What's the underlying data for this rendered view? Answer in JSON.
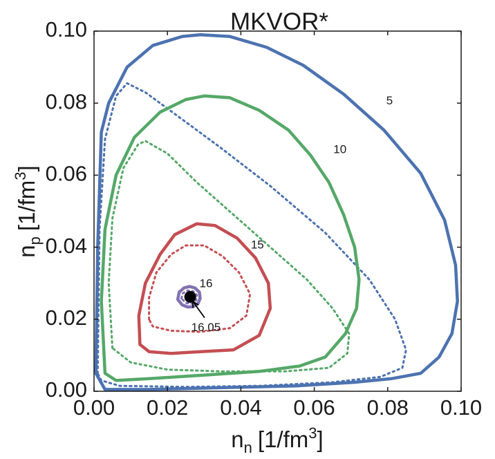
{
  "chart_data": {
    "type": "line",
    "title": "MKVOR*",
    "xlabel": {
      "main": "n",
      "sub": "n",
      "unit": "[1/fm",
      "sup": "3",
      "close": "]"
    },
    "ylabel": {
      "main": "n",
      "sub": "p",
      "unit": "[1/fm",
      "sup": "3",
      "close": "]"
    },
    "xlim": [
      0.0,
      0.1
    ],
    "ylim": [
      0.0,
      0.1
    ],
    "xticks": [
      "0.00",
      "0.02",
      "0.04",
      "0.06",
      "0.08",
      "0.10"
    ],
    "yticks": [
      "0.00",
      "0.02",
      "0.04",
      "0.06",
      "0.08",
      "0.10"
    ],
    "grid": false,
    "colors": {
      "c5": "#4c72b0",
      "c10": "#55a868",
      "c15": "#c44e52",
      "c16": "#8172b2",
      "point": "#000000"
    },
    "series": [
      {
        "name": "5",
        "style": "solid",
        "color": "#4c72b0",
        "label_at": [
          0.0805,
          0.0805
        ],
        "points": [
          [
            0.0005,
            0.005
          ],
          [
            0.001,
            0.04
          ],
          [
            0.002,
            0.072
          ],
          [
            0.004,
            0.08
          ],
          [
            0.009,
            0.09
          ],
          [
            0.016,
            0.096
          ],
          [
            0.024,
            0.0985
          ],
          [
            0.029,
            0.099
          ],
          [
            0.037,
            0.0985
          ],
          [
            0.047,
            0.0955
          ],
          [
            0.057,
            0.0905
          ],
          [
            0.068,
            0.0825
          ],
          [
            0.079,
            0.0725
          ],
          [
            0.089,
            0.0605
          ],
          [
            0.0955,
            0.0475
          ],
          [
            0.0985,
            0.035
          ],
          [
            0.099,
            0.025
          ],
          [
            0.0975,
            0.016
          ],
          [
            0.094,
            0.0095
          ],
          [
            0.089,
            0.005
          ],
          [
            0.081,
            0.0035
          ],
          [
            0.071,
            0.0025
          ],
          [
            0.055,
            0.0015
          ],
          [
            0.035,
            0.001
          ],
          [
            0.015,
            0.0005
          ],
          [
            0.003,
            0.0005
          ],
          [
            0.0005,
            0.005
          ]
        ]
      },
      {
        "name": "5 (dotted)",
        "style": "dotted",
        "color": "#4c72b0",
        "points": [
          [
            0.001,
            0.005
          ],
          [
            0.0015,
            0.045
          ],
          [
            0.003,
            0.07
          ],
          [
            0.006,
            0.082
          ],
          [
            0.009,
            0.0855
          ],
          [
            0.014,
            0.083
          ],
          [
            0.022,
            0.077
          ],
          [
            0.034,
            0.068
          ],
          [
            0.048,
            0.057
          ],
          [
            0.063,
            0.044
          ],
          [
            0.075,
            0.031
          ],
          [
            0.082,
            0.02
          ],
          [
            0.085,
            0.0115
          ],
          [
            0.084,
            0.0065
          ],
          [
            0.078,
            0.004
          ],
          [
            0.065,
            0.0025
          ],
          [
            0.045,
            0.0015
          ],
          [
            0.025,
            0.0012
          ],
          [
            0.007,
            0.0015
          ],
          [
            0.002,
            0.003
          ],
          [
            0.001,
            0.005
          ]
        ]
      },
      {
        "name": "10",
        "style": "solid",
        "color": "#55a868",
        "label_at": [
          0.067,
          0.067
        ],
        "points": [
          [
            0.003,
            0.005
          ],
          [
            0.002,
            0.025
          ],
          [
            0.003,
            0.045
          ],
          [
            0.006,
            0.06
          ],
          [
            0.011,
            0.0705
          ],
          [
            0.018,
            0.0775
          ],
          [
            0.025,
            0.081
          ],
          [
            0.03,
            0.082
          ],
          [
            0.037,
            0.0815
          ],
          [
            0.045,
            0.078
          ],
          [
            0.053,
            0.0725
          ],
          [
            0.059,
            0.0655
          ],
          [
            0.064,
            0.058
          ],
          [
            0.068,
            0.049
          ],
          [
            0.071,
            0.04
          ],
          [
            0.0722,
            0.031
          ],
          [
            0.0715,
            0.023
          ],
          [
            0.0685,
            0.016
          ],
          [
            0.063,
            0.0095
          ],
          [
            0.056,
            0.007
          ],
          [
            0.045,
            0.0055
          ],
          [
            0.03,
            0.0045
          ],
          [
            0.015,
            0.0035
          ],
          [
            0.006,
            0.003
          ],
          [
            0.003,
            0.005
          ]
        ]
      },
      {
        "name": "10 (dotted)",
        "style": "dotted",
        "color": "#55a868",
        "points": [
          [
            0.005,
            0.012
          ],
          [
            0.004,
            0.03
          ],
          [
            0.005,
            0.048
          ],
          [
            0.008,
            0.062
          ],
          [
            0.012,
            0.0685
          ],
          [
            0.014,
            0.0695
          ],
          [
            0.02,
            0.066
          ],
          [
            0.028,
            0.058
          ],
          [
            0.038,
            0.049
          ],
          [
            0.048,
            0.04
          ],
          [
            0.058,
            0.031
          ],
          [
            0.065,
            0.023
          ],
          [
            0.0695,
            0.016
          ],
          [
            0.069,
            0.0105
          ],
          [
            0.064,
            0.0065
          ],
          [
            0.052,
            0.0055
          ],
          [
            0.035,
            0.0055
          ],
          [
            0.02,
            0.006
          ],
          [
            0.01,
            0.008
          ],
          [
            0.005,
            0.012
          ]
        ]
      },
      {
        "name": "15",
        "style": "solid",
        "color": "#c44e52",
        "label_at": [
          0.0445,
          0.0405
        ],
        "points": [
          [
            0.0125,
            0.013
          ],
          [
            0.0122,
            0.021
          ],
          [
            0.014,
            0.03
          ],
          [
            0.018,
            0.038
          ],
          [
            0.022,
            0.0435
          ],
          [
            0.028,
            0.0465
          ],
          [
            0.033,
            0.046
          ],
          [
            0.039,
            0.0425
          ],
          [
            0.044,
            0.037
          ],
          [
            0.0475,
            0.03
          ],
          [
            0.048,
            0.023
          ],
          [
            0.045,
            0.0155
          ],
          [
            0.038,
            0.0115
          ],
          [
            0.029,
            0.011
          ],
          [
            0.021,
            0.0105
          ],
          [
            0.015,
            0.011
          ],
          [
            0.0125,
            0.013
          ]
        ]
      },
      {
        "name": "15 (dotted)",
        "style": "dotted",
        "color": "#c44e52",
        "points": [
          [
            0.015,
            0.02
          ],
          [
            0.015,
            0.026
          ],
          [
            0.017,
            0.033
          ],
          [
            0.021,
            0.038
          ],
          [
            0.025,
            0.0405
          ],
          [
            0.03,
            0.0405
          ],
          [
            0.035,
            0.0375
          ],
          [
            0.0395,
            0.033
          ],
          [
            0.0425,
            0.027
          ],
          [
            0.0415,
            0.021
          ],
          [
            0.037,
            0.0175
          ],
          [
            0.029,
            0.0165
          ],
          [
            0.021,
            0.0168
          ],
          [
            0.016,
            0.018
          ],
          [
            0.015,
            0.02
          ]
        ]
      },
      {
        "name": "16",
        "style": "solid",
        "color": "#8172b2",
        "label_at": [
          0.0305,
          0.0297
        ],
        "points": [
          [
            0.0228,
            0.0255
          ],
          [
            0.0232,
            0.0275
          ],
          [
            0.0245,
            0.0287
          ],
          [
            0.026,
            0.0291
          ],
          [
            0.0275,
            0.0287
          ],
          [
            0.0287,
            0.0275
          ],
          [
            0.0289,
            0.0258
          ],
          [
            0.0283,
            0.0243
          ],
          [
            0.027,
            0.0235
          ],
          [
            0.0255,
            0.0234
          ],
          [
            0.024,
            0.024
          ],
          [
            0.0228,
            0.0255
          ]
        ]
      },
      {
        "name": "16 (dotted)",
        "style": "dotted",
        "color": "#8172b2",
        "points": [
          [
            0.0238,
            0.0258
          ],
          [
            0.0242,
            0.0272
          ],
          [
            0.0255,
            0.028
          ],
          [
            0.027,
            0.0278
          ],
          [
            0.028,
            0.0267
          ],
          [
            0.0278,
            0.0252
          ],
          [
            0.0265,
            0.0243
          ],
          [
            0.025,
            0.0245
          ],
          [
            0.0238,
            0.0258
          ]
        ]
      }
    ],
    "points": [
      {
        "x": 0.0262,
        "y": 0.0262,
        "color": "#000000"
      }
    ],
    "annotations": [
      {
        "text": "16.05",
        "xy": [
          0.0262,
          0.0262
        ],
        "xytext": [
          0.0305,
          0.0185
        ]
      }
    ]
  }
}
